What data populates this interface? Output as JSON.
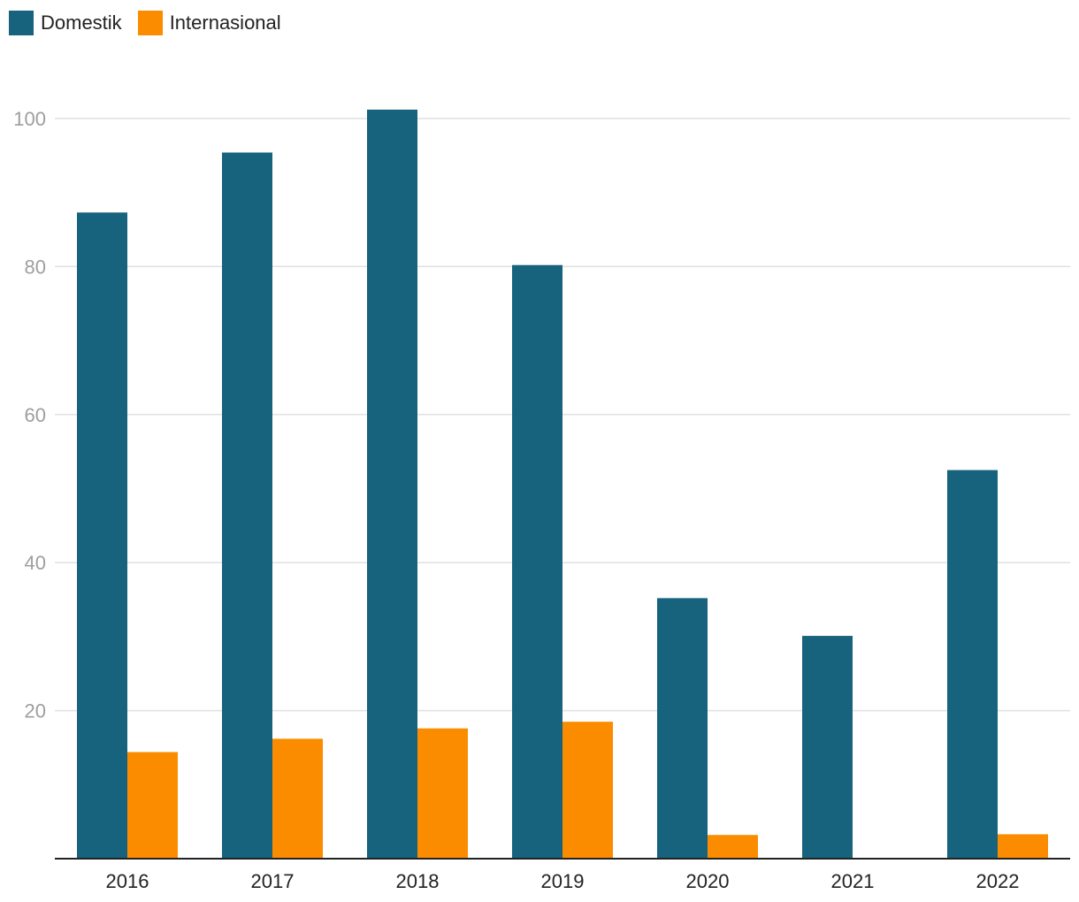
{
  "chart_data": {
    "type": "bar",
    "categories": [
      "2016",
      "2017",
      "2018",
      "2019",
      "2020",
      "2021",
      "2022"
    ],
    "series": [
      {
        "name": "Domestik",
        "color": "#17627d",
        "values": [
          87.3,
          95.4,
          101.2,
          80.2,
          35.2,
          30.1,
          52.5
        ]
      },
      {
        "name": "Internasional",
        "color": "#fb8c00",
        "values": [
          14.4,
          16.2,
          17.6,
          18.5,
          3.2,
          0,
          3.3
        ]
      }
    ],
    "ylim": [
      0,
      100
    ],
    "yticks": [
      20,
      40,
      60,
      80,
      100
    ],
    "grid": true,
    "legend_position": "top-left",
    "title": "",
    "xlabel": "",
    "ylabel": ""
  }
}
